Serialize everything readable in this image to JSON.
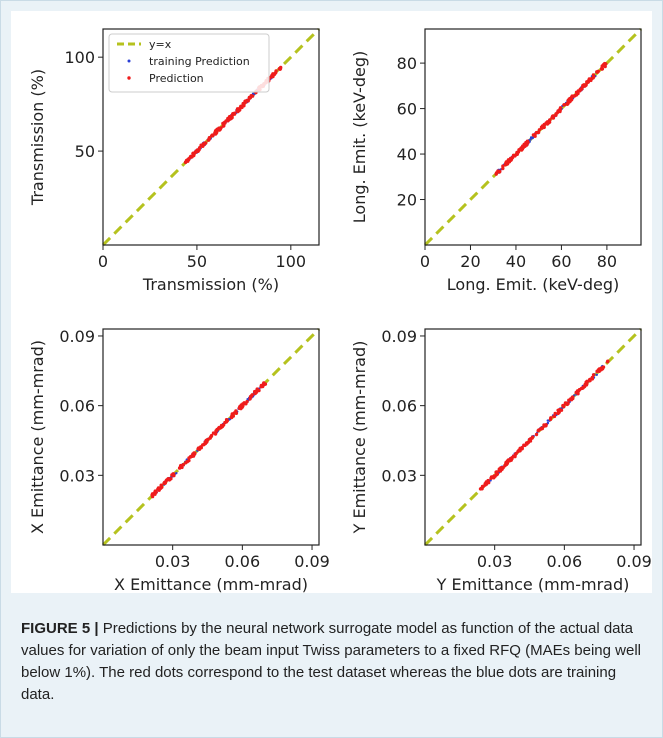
{
  "figure_label": "FIGURE 5 |",
  "caption": " Predictions by the neural network surrogate model as function of the actual data values for variation of only the beam input Twiss parameters to a fixed RFQ (MAEs being well below 1%). The red dots correspond to the test dataset whereas the blue dots are training data.",
  "colors": {
    "identity_line": "#b5c21e",
    "training": "#2a3fd6",
    "prediction": "#ef1c1c",
    "axis": "#222222"
  },
  "chart_data": [
    {
      "type": "scatter",
      "xlabel": "Transmission (%)",
      "ylabel": "Transmission (%)",
      "xlim": [
        0,
        115
      ],
      "ylim": [
        0,
        115
      ],
      "xticks": [
        0,
        50,
        100
      ],
      "xtick_labels": [
        "0",
        "50",
        "100"
      ],
      "yticks": [
        50,
        100
      ],
      "ytick_labels": [
        "50",
        "100"
      ],
      "grid": false,
      "legend": {
        "placement": "top-left",
        "entries": [
          "y=x",
          "training Prediction",
          "Prediction"
        ]
      },
      "series": [
        {
          "name": "y=x",
          "kind": "line",
          "x": [
            0,
            115
          ],
          "y": [
            0,
            115
          ]
        },
        {
          "name": "training Prediction",
          "kind": "points",
          "range": [
            46,
            92
          ]
        },
        {
          "name": "Prediction",
          "kind": "points",
          "range": [
            44,
            96
          ]
        }
      ]
    },
    {
      "type": "scatter",
      "xlabel": "Long. Emit. (keV-deg)",
      "ylabel": "Long. Emit. (keV-deg)",
      "xlim": [
        0,
        95
      ],
      "ylim": [
        0,
        95
      ],
      "xticks": [
        0,
        20,
        40,
        60,
        80
      ],
      "xtick_labels": [
        "0",
        "20",
        "40",
        "60",
        "80"
      ],
      "yticks": [
        20,
        40,
        60,
        80
      ],
      "ytick_labels": [
        "20",
        "40",
        "60",
        "80"
      ],
      "grid": false,
      "series": [
        {
          "name": "y=x",
          "kind": "line",
          "x": [
            0,
            95
          ],
          "y": [
            0,
            95
          ]
        },
        {
          "name": "training Prediction",
          "kind": "points",
          "range": [
            32,
            76
          ]
        },
        {
          "name": "Prediction",
          "kind": "points",
          "range": [
            31,
            80
          ]
        }
      ]
    },
    {
      "type": "scatter",
      "xlabel": "X Emittance (mm-mrad)",
      "ylabel": "X Emittance (mm-mrad)",
      "xlim": [
        0,
        0.093
      ],
      "ylim": [
        0,
        0.093
      ],
      "xticks": [
        0.03,
        0.06,
        0.09
      ],
      "xtick_labels": [
        "0.03",
        "0.06",
        "0.09"
      ],
      "yticks": [
        0.03,
        0.06,
        0.09
      ],
      "ytick_labels": [
        "0.03",
        "0.06",
        "0.09"
      ],
      "grid": false,
      "series": [
        {
          "name": "y=x",
          "kind": "line",
          "x": [
            0,
            0.093
          ],
          "y": [
            0,
            0.093
          ]
        },
        {
          "name": "training Prediction",
          "kind": "points",
          "range": [
            0.022,
            0.068
          ]
        },
        {
          "name": "Prediction",
          "kind": "points",
          "range": [
            0.021,
            0.07
          ]
        }
      ]
    },
    {
      "type": "scatter",
      "xlabel": "Y Emittance (mm-mrad)",
      "ylabel": "Y Emittance (mm-mrad)",
      "xlim": [
        0,
        0.093
      ],
      "ylim": [
        0,
        0.093
      ],
      "xticks": [
        0.03,
        0.06,
        0.09
      ],
      "xtick_labels": [
        "0.03",
        "0.06",
        "0.09"
      ],
      "yticks": [
        0.03,
        0.06,
        0.09
      ],
      "ytick_labels": [
        "0.03",
        "0.06",
        "0.09"
      ],
      "grid": false,
      "series": [
        {
          "name": "y=x",
          "kind": "line",
          "x": [
            0,
            0.093
          ],
          "y": [
            0,
            0.093
          ]
        },
        {
          "name": "training Prediction",
          "kind": "points",
          "range": [
            0.025,
            0.077
          ]
        },
        {
          "name": "Prediction",
          "kind": "points",
          "range": [
            0.024,
            0.079
          ]
        }
      ]
    }
  ]
}
